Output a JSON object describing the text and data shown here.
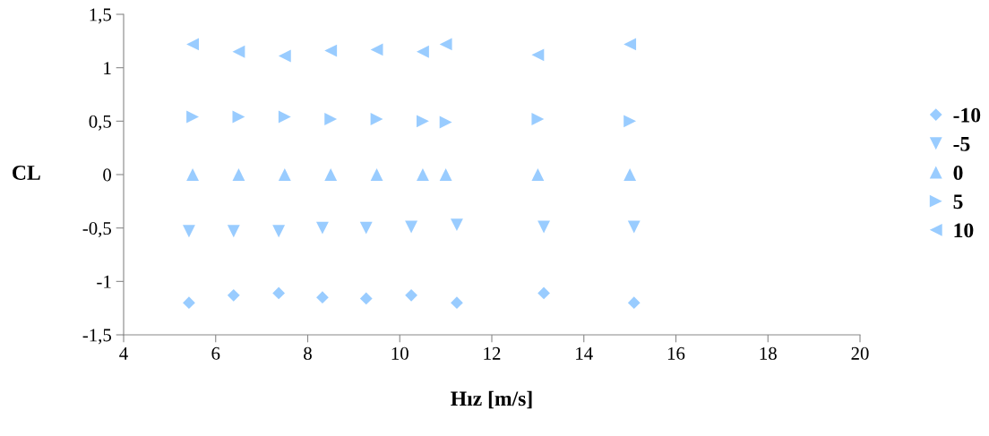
{
  "chart_data": {
    "type": "scatter",
    "xlabel": "Hız [m/s]",
    "ylabel": "CL",
    "xlim": [
      4,
      20
    ],
    "xticks": [
      4,
      6,
      8,
      10,
      12,
      14,
      16,
      18,
      20
    ],
    "ylim": [
      -1.5,
      1.5
    ],
    "yticks": [
      {
        "value": -1.5,
        "label": "-1,5"
      },
      -1,
      {
        "value": -0.5,
        "label": "-0,5"
      },
      0,
      {
        "value": 0.5,
        "label": "0,5"
      },
      1,
      {
        "value": 1.5,
        "label": "1,5"
      }
    ],
    "grid": false,
    "legend": "right",
    "series": [
      {
        "name": "-10",
        "color": "#99ccff",
        "marker": "diamond",
        "x": [
          5.42,
          6.39,
          7.37,
          8.32,
          9.27,
          10.25,
          11.24,
          13.13,
          15.09
        ],
        "values": [
          -1.2,
          -1.13,
          -1.11,
          -1.15,
          -1.16,
          -1.13,
          -1.2,
          -1.11,
          -1.2
        ]
      },
      {
        "name": "-5",
        "color": "#99ccff",
        "marker": "triangle_down",
        "x": [
          5.42,
          6.39,
          7.37,
          8.32,
          9.27,
          10.25,
          11.24,
          13.13,
          15.09
        ],
        "values": [
          -0.53,
          -0.53,
          -0.53,
          -0.5,
          -0.5,
          -0.49,
          -0.47,
          -0.49,
          -0.49
        ]
      },
      {
        "name": "0",
        "color": "#99ccff",
        "marker": "triangle",
        "x": [
          5.5,
          6.5,
          7.5,
          8.5,
          9.5,
          10.5,
          11.0,
          13.0,
          15.0
        ],
        "values": [
          0,
          0,
          0,
          0,
          0,
          0,
          0,
          0,
          0
        ]
      },
      {
        "name": "5",
        "color": "#99ccff",
        "marker": "triangle_right",
        "x": [
          5.5,
          6.5,
          7.5,
          8.5,
          9.5,
          10.5,
          11.0,
          13.0,
          15.0
        ],
        "values": [
          0.54,
          0.54,
          0.54,
          0.52,
          0.52,
          0.5,
          0.49,
          0.52,
          0.5
        ]
      },
      {
        "name": "10",
        "color": "#99ccff",
        "marker": "triangle_left",
        "x": [
          5.5,
          6.5,
          7.5,
          8.5,
          9.5,
          10.5,
          11.0,
          13.0,
          15.0
        ],
        "values": [
          1.22,
          1.15,
          1.11,
          1.16,
          1.17,
          1.15,
          1.22,
          1.12,
          1.22
        ]
      }
    ]
  }
}
